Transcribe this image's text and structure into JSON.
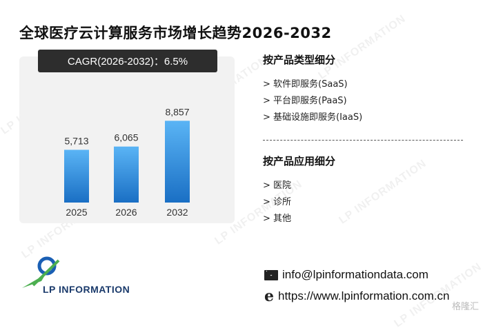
{
  "title": "全球医疗云计算服务市场增长趋势2026-2032",
  "cagr_label": "CAGR(2026-2032)：6.5%",
  "chart_data": {
    "type": "bar",
    "categories": [
      "2025",
      "2026",
      "2032"
    ],
    "values": [
      5713,
      6065,
      8857
    ],
    "value_labels": [
      "5,713",
      "6,065",
      "8,857"
    ],
    "title": "",
    "xlabel": "",
    "ylabel": "",
    "ylim": [
      0,
      10000
    ],
    "grid": false,
    "bar_color_top": "#5ab4f5",
    "bar_color_bottom": "#1a6fc4"
  },
  "segments": {
    "by_type": {
      "heading": "按产品类型细分",
      "items": [
        "> 软件即服务(SaaS)",
        "> 平台即服务(PaaS)",
        "> 基础设施即服务(IaaS)"
      ]
    },
    "by_application": {
      "heading": "按产品应用细分",
      "items": [
        "> 医院",
        "> 诊所",
        "> 其他"
      ]
    }
  },
  "contact": {
    "email": "info@lpinformationdata.com",
    "website": "https://www.lpinformation.com.cn",
    "email_icon": "envelope-icon",
    "web_icon": "browser-e-icon"
  },
  "logo": {
    "text": "LP INFORMATION"
  },
  "watermark_text": "LP INFORMATION",
  "corner_badge": "格隆汇"
}
